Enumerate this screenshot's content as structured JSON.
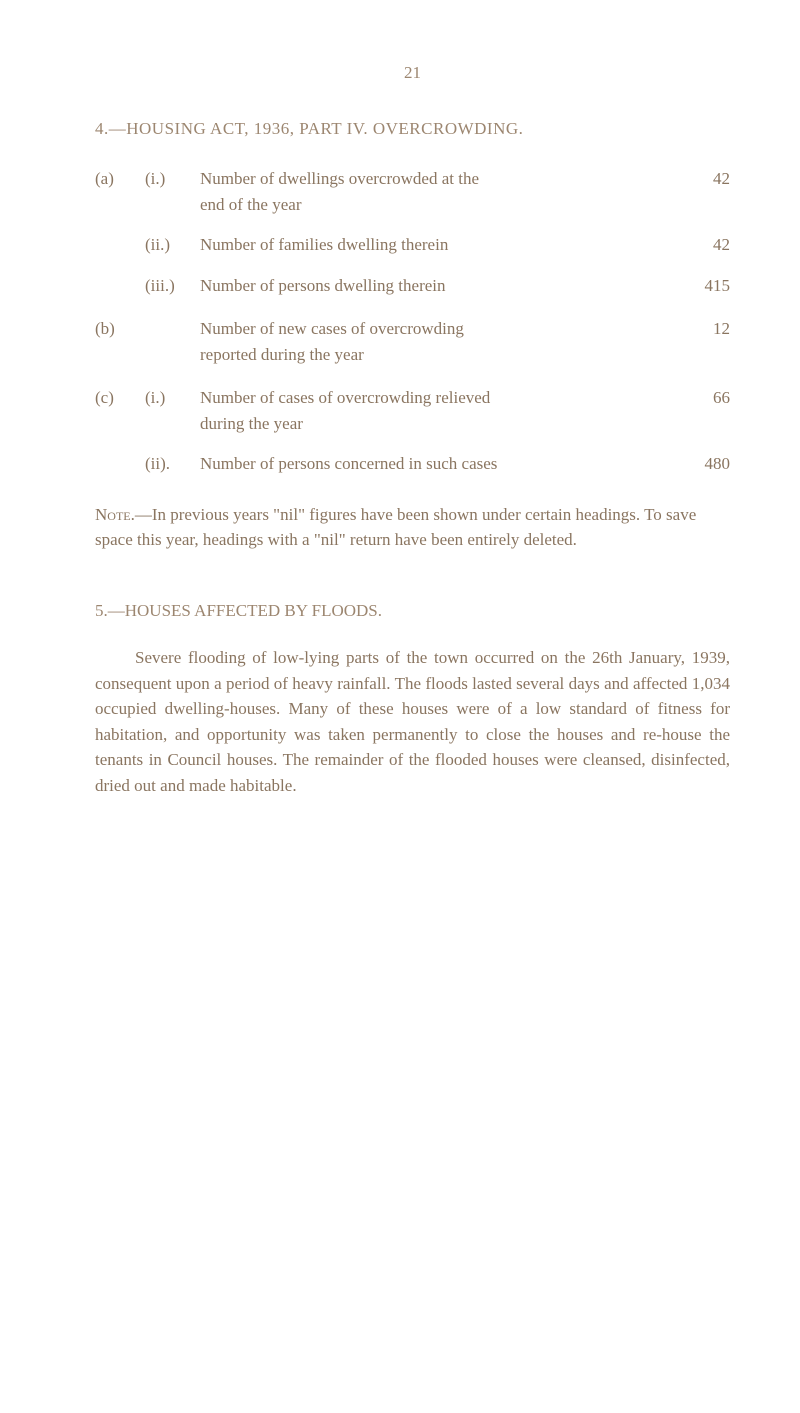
{
  "page_number": "21",
  "section4_title": "4.—HOUSING ACT, 1936, PART IV. OVERCROWDING.",
  "entries": {
    "a_i": {
      "label_main": "(a)",
      "label_sub": "(i.)",
      "text_line1": "Number of dwellings overcrowded at the",
      "text_line2": "end of the year",
      "value": "42"
    },
    "a_ii": {
      "label_sub": "(ii.)",
      "text": "Number of families dwelling therein",
      "value": "42"
    },
    "a_iii": {
      "label_sub": "(iii.)",
      "text": "Number of persons dwelling therein",
      "value": "415"
    },
    "b": {
      "label_main": "(b)",
      "text_line1": "Number of new cases of overcrowding",
      "text_line2": "reported during the year",
      "value": "12"
    },
    "c_i": {
      "label_main": "(c)",
      "label_sub": "(i.)",
      "text_line1": "Number of cases of overcrowding relieved",
      "text_line2": "during the year",
      "value": "66"
    },
    "c_ii": {
      "label_sub": "(ii).",
      "text": "Number of persons concerned in such cases",
      "value": "480"
    }
  },
  "note": {
    "label": "Note.",
    "text": "—In previous years \"nil\" figures have been shown under certain headings. To save space this year, headings with a \"nil\" return have been entirely deleted."
  },
  "section5_title": "5.—HOUSES AFFECTED BY FLOODS.",
  "body_paragraph": "Severe flooding of low-lying parts of the town occurred on the 26th January, 1939, consequent upon a period of heavy rainfall. The floods lasted several days and affected 1,034 occupied dwelling-houses. Many of these houses were of a low standard of fitness for habitation, and opportunity was taken permanently to close the houses and re-house the tenants in Council houses. The remainder of the flooded houses were cleansed, disinfected, dried out and made habitable."
}
